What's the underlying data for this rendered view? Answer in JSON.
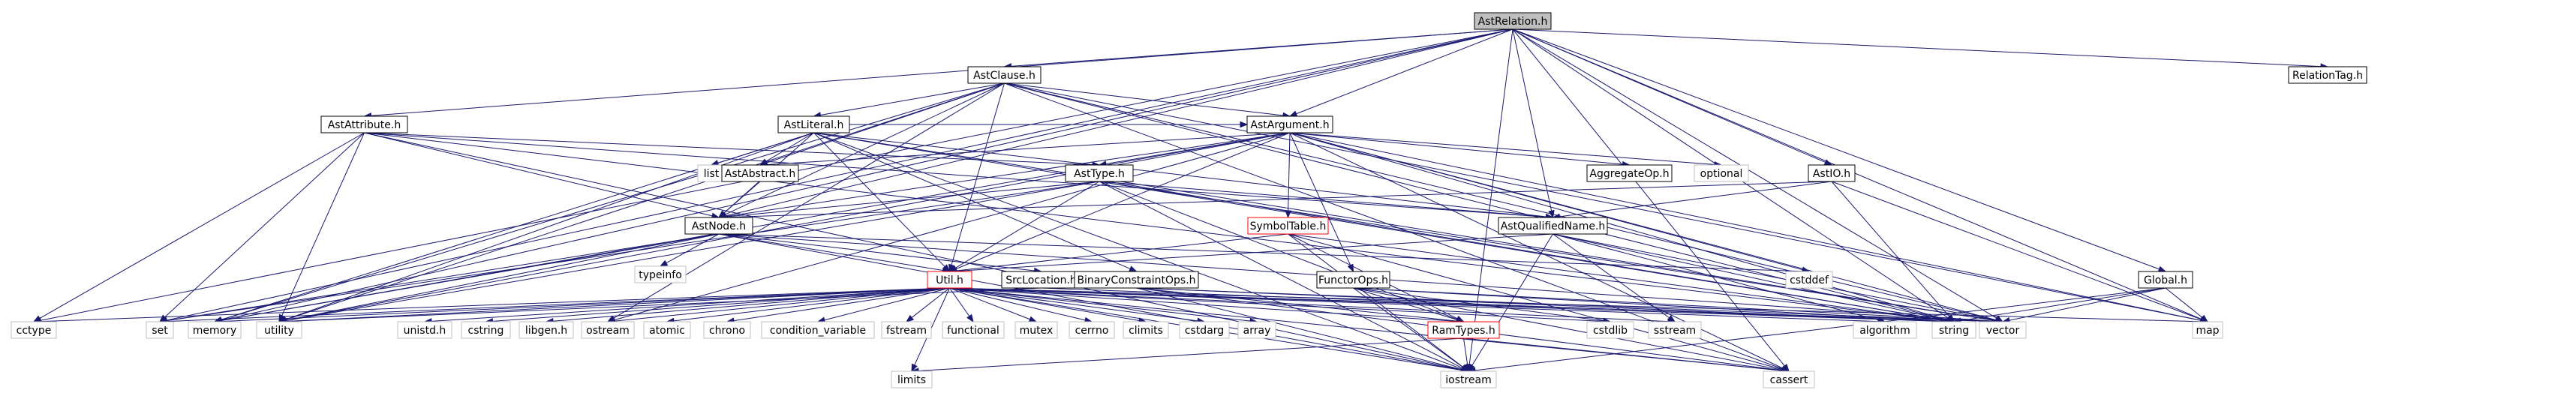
{
  "diagram": {
    "title": "AstRelation.h",
    "colors": {
      "edge": "#191970",
      "root_fill": "#bfbfbf",
      "file_border": "#000000",
      "system_border": "#bfbfbf",
      "highlight_border": "#ff0000"
    },
    "nodes": [
      {
        "id": "AstRelation",
        "label": "AstRelation.h",
        "kind": "root"
      },
      {
        "id": "AstClause",
        "label": "AstClause.h",
        "kind": "file"
      },
      {
        "id": "RelationTag",
        "label": "RelationTag.h",
        "kind": "file"
      },
      {
        "id": "AstAttribute",
        "label": "AstAttribute.h",
        "kind": "file"
      },
      {
        "id": "AstLiteral",
        "label": "AstLiteral.h",
        "kind": "file"
      },
      {
        "id": "AstArgument",
        "label": "AstArgument.h",
        "kind": "file"
      },
      {
        "id": "list",
        "label": "list",
        "kind": "system"
      },
      {
        "id": "AstAbstract",
        "label": "AstAbstract.h",
        "kind": "file"
      },
      {
        "id": "AstType",
        "label": "AstType.h",
        "kind": "file"
      },
      {
        "id": "AggregateOp",
        "label": "AggregateOp.h",
        "kind": "file"
      },
      {
        "id": "optional",
        "label": "optional",
        "kind": "system"
      },
      {
        "id": "AstIO",
        "label": "AstIO.h",
        "kind": "file"
      },
      {
        "id": "AstNode",
        "label": "AstNode.h",
        "kind": "file"
      },
      {
        "id": "SymbolTable",
        "label": "SymbolTable.h",
        "kind": "highlight"
      },
      {
        "id": "AstQualifiedName",
        "label": "AstQualifiedName.h",
        "kind": "file"
      },
      {
        "id": "typeinfo",
        "label": "typeinfo",
        "kind": "system"
      },
      {
        "id": "Util",
        "label": "Util.h",
        "kind": "highlight"
      },
      {
        "id": "SrcLocation",
        "label": "SrcLocation.h",
        "kind": "file"
      },
      {
        "id": "BinaryConstraintOps",
        "label": "BinaryConstraintOps.h",
        "kind": "file"
      },
      {
        "id": "FunctorOps",
        "label": "FunctorOps.h",
        "kind": "file"
      },
      {
        "id": "cstddef",
        "label": "cstddef",
        "kind": "system"
      },
      {
        "id": "Global",
        "label": "Global.h",
        "kind": "file"
      },
      {
        "id": "cctype",
        "label": "cctype",
        "kind": "system"
      },
      {
        "id": "set",
        "label": "set",
        "kind": "system"
      },
      {
        "id": "memory",
        "label": "memory",
        "kind": "system"
      },
      {
        "id": "utility",
        "label": "utility",
        "kind": "system"
      },
      {
        "id": "unistd",
        "label": "unistd.h",
        "kind": "system"
      },
      {
        "id": "cstring",
        "label": "cstring",
        "kind": "system"
      },
      {
        "id": "libgen",
        "label": "libgen.h",
        "kind": "system"
      },
      {
        "id": "ostream",
        "label": "ostream",
        "kind": "system"
      },
      {
        "id": "atomic",
        "label": "atomic",
        "kind": "system"
      },
      {
        "id": "chrono",
        "label": "chrono",
        "kind": "system"
      },
      {
        "id": "condition_variable",
        "label": "condition_variable",
        "kind": "system"
      },
      {
        "id": "fstream",
        "label": "fstream",
        "kind": "system"
      },
      {
        "id": "functional",
        "label": "functional",
        "kind": "system"
      },
      {
        "id": "mutex",
        "label": "mutex",
        "kind": "system"
      },
      {
        "id": "cerrno",
        "label": "cerrno",
        "kind": "system"
      },
      {
        "id": "climits",
        "label": "climits",
        "kind": "system"
      },
      {
        "id": "cstdarg",
        "label": "cstdarg",
        "kind": "system"
      },
      {
        "id": "array",
        "label": "array",
        "kind": "system"
      },
      {
        "id": "RamTypes",
        "label": "RamTypes.h",
        "kind": "highlight"
      },
      {
        "id": "cstdlib",
        "label": "cstdlib",
        "kind": "system"
      },
      {
        "id": "sstream",
        "label": "sstream",
        "kind": "system"
      },
      {
        "id": "algorithm",
        "label": "algorithm",
        "kind": "system"
      },
      {
        "id": "string",
        "label": "string",
        "kind": "system"
      },
      {
        "id": "vector",
        "label": "vector",
        "kind": "system"
      },
      {
        "id": "map",
        "label": "map",
        "kind": "system"
      },
      {
        "id": "limits",
        "label": "limits",
        "kind": "system"
      },
      {
        "id": "iostream",
        "label": "iostream",
        "kind": "system"
      },
      {
        "id": "cassert",
        "label": "cassert",
        "kind": "system"
      }
    ],
    "edges": [
      [
        "AstRelation",
        "AstClause"
      ],
      [
        "AstRelation",
        "RelationTag"
      ],
      [
        "AstRelation",
        "AstAttribute"
      ],
      [
        "AstRelation",
        "AstArgument"
      ],
      [
        "AstRelation",
        "AstIO"
      ],
      [
        "AstRelation",
        "AstNode"
      ],
      [
        "AstRelation",
        "AstQualifiedName"
      ],
      [
        "AstRelation",
        "Global"
      ],
      [
        "AstRelation",
        "cctype"
      ],
      [
        "AstRelation",
        "set"
      ],
      [
        "AstRelation",
        "memory"
      ],
      [
        "AstRelation",
        "string"
      ],
      [
        "AstRelation",
        "vector"
      ],
      [
        "AstRelation",
        "iostream"
      ],
      [
        "AstRelation",
        "cassert"
      ],
      [
        "AstRelation",
        "map"
      ],
      [
        "AstClause",
        "AstLiteral"
      ],
      [
        "AstClause",
        "AstArgument"
      ],
      [
        "AstClause",
        "AstAbstract"
      ],
      [
        "AstClause",
        "AstNode"
      ],
      [
        "AstClause",
        "Util"
      ],
      [
        "AstClause",
        "memory"
      ],
      [
        "AstClause",
        "utility"
      ],
      [
        "AstClause",
        "ostream"
      ],
      [
        "AstClause",
        "string"
      ],
      [
        "AstClause",
        "vector"
      ],
      [
        "AstClause",
        "cassert"
      ],
      [
        "AstClause",
        "map"
      ],
      [
        "AstAttribute",
        "AstNode"
      ],
      [
        "AstAttribute",
        "AstType"
      ],
      [
        "AstAttribute",
        "AstQualifiedName"
      ],
      [
        "AstAttribute",
        "cctype"
      ],
      [
        "AstAttribute",
        "set"
      ],
      [
        "AstAttribute",
        "utility"
      ],
      [
        "AstAttribute",
        "string"
      ],
      [
        "AstAttribute",
        "iostream"
      ],
      [
        "AstLiteral",
        "AstAbstract"
      ],
      [
        "AstLiteral",
        "AstArgument"
      ],
      [
        "AstLiteral",
        "AstNode"
      ],
      [
        "AstLiteral",
        "BinaryConstraintOps"
      ],
      [
        "AstLiteral",
        "Util"
      ],
      [
        "AstLiteral",
        "list"
      ],
      [
        "AstLiteral",
        "memory"
      ],
      [
        "AstLiteral",
        "utility"
      ],
      [
        "AstLiteral",
        "string"
      ],
      [
        "AstLiteral",
        "vector"
      ],
      [
        "AstLiteral",
        "iostream"
      ],
      [
        "AstLiteral",
        "AstQualifiedName"
      ],
      [
        "AstArgument",
        "AstAbstract"
      ],
      [
        "AstArgument",
        "AstType"
      ],
      [
        "AstArgument",
        "AggregateOp"
      ],
      [
        "AstArgument",
        "SymbolTable"
      ],
      [
        "AstArgument",
        "FunctorOps"
      ],
      [
        "AstArgument",
        "AstNode"
      ],
      [
        "AstArgument",
        "Util"
      ],
      [
        "AstArgument",
        "optional"
      ],
      [
        "AstArgument",
        "memory"
      ],
      [
        "AstArgument",
        "utility"
      ],
      [
        "AstArgument",
        "string"
      ],
      [
        "AstArgument",
        "vector"
      ],
      [
        "AstArgument",
        "cstddef"
      ],
      [
        "AstArgument",
        "cassert"
      ],
      [
        "AstArgument",
        "map"
      ],
      [
        "AstArgument",
        "ostream"
      ],
      [
        "AstAbstract",
        "AstNode"
      ],
      [
        "AstType",
        "AstNode"
      ],
      [
        "AstType",
        "AstQualifiedName"
      ],
      [
        "AstType",
        "Util"
      ],
      [
        "AstType",
        "RamTypes"
      ],
      [
        "AstType",
        "set"
      ],
      [
        "AstType",
        "utility"
      ],
      [
        "AstType",
        "string"
      ],
      [
        "AstType",
        "vector"
      ],
      [
        "AstType",
        "iostream"
      ],
      [
        "AstIO",
        "AstNode"
      ],
      [
        "AstIO",
        "AstQualifiedName"
      ],
      [
        "AstIO",
        "string"
      ],
      [
        "AstIO",
        "map"
      ],
      [
        "AstNode",
        "SrcLocation"
      ],
      [
        "AstNode",
        "Util"
      ],
      [
        "AstNode",
        "typeinfo"
      ],
      [
        "AstNode",
        "set"
      ],
      [
        "AstNode",
        "memory"
      ],
      [
        "AstNode",
        "utility"
      ],
      [
        "AstNode",
        "vector"
      ],
      [
        "AstNode",
        "cstddef"
      ],
      [
        "AstNode",
        "iostream"
      ],
      [
        "SymbolTable",
        "Util"
      ],
      [
        "SymbolTable",
        "RamTypes"
      ],
      [
        "SymbolTable",
        "string"
      ],
      [
        "SymbolTable",
        "iostream"
      ],
      [
        "SymbolTable",
        "cassert"
      ],
      [
        "AstQualifiedName",
        "Util"
      ],
      [
        "AstQualifiedName",
        "string"
      ],
      [
        "AstQualifiedName",
        "vector"
      ],
      [
        "AstQualifiedName",
        "algorithm"
      ],
      [
        "AstQualifiedName",
        "iostream"
      ],
      [
        "AstQualifiedName",
        "sstream"
      ],
      [
        "Util",
        "cctype"
      ],
      [
        "Util",
        "set"
      ],
      [
        "Util",
        "memory"
      ],
      [
        "Util",
        "utility"
      ],
      [
        "Util",
        "unistd"
      ],
      [
        "Util",
        "cstring"
      ],
      [
        "Util",
        "libgen"
      ],
      [
        "Util",
        "ostream"
      ],
      [
        "Util",
        "atomic"
      ],
      [
        "Util",
        "chrono"
      ],
      [
        "Util",
        "condition_variable"
      ],
      [
        "Util",
        "fstream"
      ],
      [
        "Util",
        "functional"
      ],
      [
        "Util",
        "mutex"
      ],
      [
        "Util",
        "cerrno"
      ],
      [
        "Util",
        "climits"
      ],
      [
        "Util",
        "cstdarg"
      ],
      [
        "Util",
        "array"
      ],
      [
        "Util",
        "RamTypes"
      ],
      [
        "Util",
        "cstdlib"
      ],
      [
        "Util",
        "algorithm"
      ],
      [
        "Util",
        "string"
      ],
      [
        "Util",
        "vector"
      ],
      [
        "Util",
        "map"
      ],
      [
        "Util",
        "limits"
      ],
      [
        "Util",
        "iostream"
      ],
      [
        "Util",
        "cassert"
      ],
      [
        "Util",
        "sstream"
      ],
      [
        "SrcLocation",
        "string"
      ],
      [
        "SrcLocation",
        "utility"
      ],
      [
        "BinaryConstraintOps",
        "RamTypes"
      ],
      [
        "BinaryConstraintOps",
        "string"
      ],
      [
        "BinaryConstraintOps",
        "vector"
      ],
      [
        "BinaryConstraintOps",
        "iostream"
      ],
      [
        "BinaryConstraintOps",
        "cassert"
      ],
      [
        "FunctorOps",
        "RamTypes"
      ],
      [
        "FunctorOps",
        "string"
      ],
      [
        "FunctorOps",
        "vector"
      ],
      [
        "FunctorOps",
        "cstdlib"
      ],
      [
        "FunctorOps",
        "cassert"
      ],
      [
        "FunctorOps",
        "iostream"
      ],
      [
        "RamTypes",
        "limits"
      ],
      [
        "RamTypes",
        "iostream"
      ],
      [
        "RamTypes",
        "cassert"
      ],
      [
        "Global",
        "string"
      ],
      [
        "Global",
        "vector"
      ],
      [
        "Global",
        "map"
      ],
      [
        "Global",
        "iostream"
      ]
    ]
  }
}
